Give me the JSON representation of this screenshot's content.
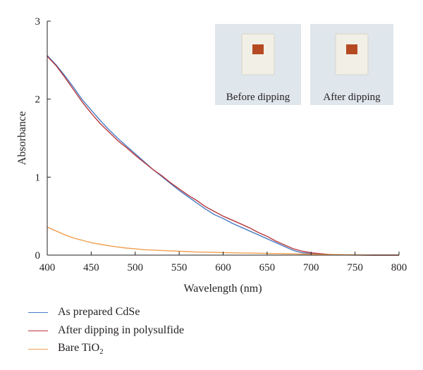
{
  "chart_data": {
    "type": "line",
    "xlabel": "Wavelength (nm)",
    "ylabel": "Absorbance",
    "xlim": [
      400,
      800
    ],
    "ylim": [
      0,
      3
    ],
    "x_ticks": [
      "400",
      "450",
      "500",
      "550",
      "600",
      "650",
      "700",
      "750",
      "800"
    ],
    "y_ticks": [
      "0",
      "1",
      "2",
      "3"
    ],
    "grid": false,
    "legend_position": "bottom-left, below plot",
    "series": [
      {
        "name": "As prepared CdSe",
        "color": "#4a7cc4",
        "x": [
          400,
          410,
          420,
          430,
          440,
          450,
          460,
          470,
          480,
          490,
          500,
          510,
          520,
          530,
          540,
          550,
          560,
          570,
          580,
          590,
          600,
          610,
          620,
          630,
          640,
          650,
          660,
          670,
          680,
          690,
          700,
          710,
          720,
          730,
          740,
          750,
          760,
          770,
          780,
          790,
          800
        ],
        "y": [
          2.56,
          2.44,
          2.3,
          2.15,
          1.99,
          1.86,
          1.73,
          1.61,
          1.5,
          1.4,
          1.3,
          1.2,
          1.1,
          1.01,
          0.92,
          0.83,
          0.75,
          0.67,
          0.59,
          0.52,
          0.47,
          0.41,
          0.36,
          0.31,
          0.26,
          0.21,
          0.16,
          0.11,
          0.06,
          0.03,
          0.02,
          0.01,
          0.005,
          0.003,
          0.002,
          0.001,
          0.001,
          0.0,
          0.0,
          0.0,
          0.0
        ]
      },
      {
        "name": "After dipping in polysulfide",
        "color": "#b8383d",
        "x": [
          400,
          410,
          420,
          430,
          440,
          450,
          460,
          470,
          480,
          490,
          500,
          510,
          520,
          530,
          540,
          550,
          560,
          570,
          580,
          590,
          600,
          610,
          620,
          630,
          640,
          650,
          660,
          670,
          680,
          690,
          700,
          710,
          720,
          730,
          740,
          750,
          760,
          770,
          780,
          790,
          800
        ],
        "y": [
          2.55,
          2.43,
          2.28,
          2.12,
          1.96,
          1.82,
          1.69,
          1.58,
          1.47,
          1.38,
          1.28,
          1.19,
          1.1,
          1.02,
          0.93,
          0.85,
          0.77,
          0.7,
          0.62,
          0.56,
          0.5,
          0.45,
          0.4,
          0.35,
          0.29,
          0.24,
          0.18,
          0.13,
          0.08,
          0.05,
          0.03,
          0.02,
          0.01,
          0.005,
          0.003,
          0.002,
          0.001,
          0.0,
          0.0,
          0.0,
          0.0
        ]
      },
      {
        "name": "Bare TiO2",
        "color": "#f0a050",
        "x": [
          400,
          410,
          420,
          430,
          440,
          450,
          460,
          470,
          480,
          490,
          500,
          510,
          520,
          530,
          540,
          550,
          560,
          570,
          580,
          590,
          600,
          610,
          620,
          630,
          640,
          650,
          660,
          670,
          680,
          690,
          700,
          710,
          720,
          730,
          740,
          750,
          760,
          770,
          780,
          790,
          800
        ],
        "y": [
          0.36,
          0.31,
          0.26,
          0.22,
          0.19,
          0.16,
          0.14,
          0.12,
          0.105,
          0.09,
          0.08,
          0.07,
          0.065,
          0.06,
          0.055,
          0.05,
          0.045,
          0.04,
          0.038,
          0.035,
          0.032,
          0.03,
          0.028,
          0.026,
          0.024,
          0.022,
          0.02,
          0.018,
          0.016,
          0.014,
          0.012,
          0.01,
          0.008,
          0.006,
          0.005,
          0.004,
          0.003,
          0.002,
          0.001,
          0.001,
          0.0
        ]
      }
    ],
    "inset_photos": [
      {
        "caption": "Before dipping"
      },
      {
        "caption": "After dipping"
      }
    ]
  },
  "legend": {
    "items": [
      {
        "label": "As prepared CdSe",
        "color": "#4a7cc4"
      },
      {
        "label": "After dipping in polysulfide",
        "color": "#b8383d"
      },
      {
        "label_main": "Bare TiO",
        "label_sub": "2",
        "color": "#f0a050"
      }
    ]
  }
}
